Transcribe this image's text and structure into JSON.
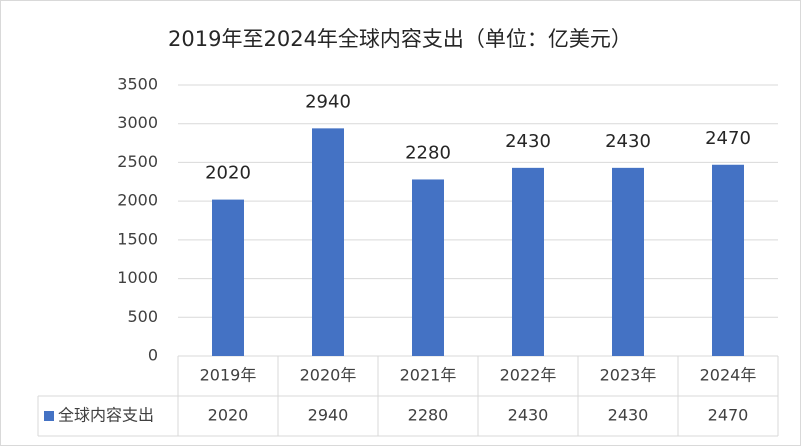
{
  "chart_data": {
    "type": "bar",
    "title": "2019年至2024年全球内容支出（单位：亿美元）",
    "categories": [
      "2019年",
      "2020年",
      "2021年",
      "2022年",
      "2023年",
      "2024年"
    ],
    "series": [
      {
        "name": "全球内容支出",
        "color": "#4472c4",
        "values": [
          2020,
          2940,
          2280,
          2430,
          2430,
          2470
        ]
      }
    ],
    "ylim": [
      0,
      3500
    ],
    "yticks": [
      0,
      500,
      1000,
      1500,
      2000,
      2500,
      3000,
      3500
    ],
    "grid": true,
    "data_table": true
  }
}
